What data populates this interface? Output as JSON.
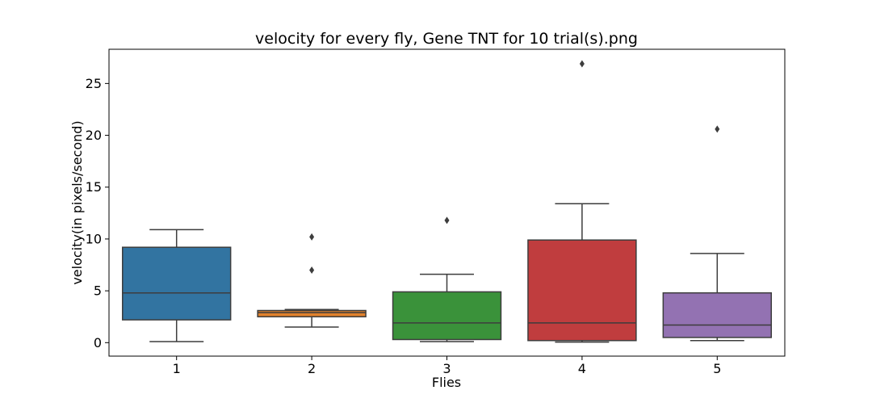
{
  "chart_data": {
    "type": "box",
    "title": "velocity for every fly, Gene TNT for 10 trial(s).png",
    "xlabel": "Flies",
    "ylabel": "velocity(in pixels/second)",
    "categories": [
      "1",
      "2",
      "3",
      "4",
      "5"
    ],
    "ylim": [
      -1.3,
      28.3
    ],
    "yticks": [
      0,
      5,
      10,
      15,
      20,
      25
    ],
    "grid": false,
    "boxes": [
      {
        "name": "1",
        "color": "#3274a1",
        "whisker_low": 0.1,
        "q1": 2.2,
        "median": 4.8,
        "q3": 9.2,
        "whisker_high": 10.9,
        "outliers": []
      },
      {
        "name": "2",
        "color": "#e1812c",
        "whisker_low": 1.5,
        "q1": 2.5,
        "median": 2.9,
        "q3": 3.1,
        "whisker_high": 3.2,
        "outliers": [
          7.0,
          10.2
        ]
      },
      {
        "name": "3",
        "color": "#3a923a",
        "whisker_low": 0.1,
        "q1": 0.3,
        "median": 1.9,
        "q3": 4.9,
        "whisker_high": 6.6,
        "outliers": [
          11.8
        ]
      },
      {
        "name": "4",
        "color": "#c03d3e",
        "whisker_low": 0.05,
        "q1": 0.2,
        "median": 1.9,
        "q3": 9.9,
        "whisker_high": 13.4,
        "outliers": [
          26.9
        ]
      },
      {
        "name": "5",
        "color": "#9372b2",
        "whisker_low": 0.2,
        "q1": 0.5,
        "median": 1.7,
        "q3": 4.8,
        "whisker_high": 8.6,
        "outliers": [
          20.6
        ]
      }
    ]
  }
}
